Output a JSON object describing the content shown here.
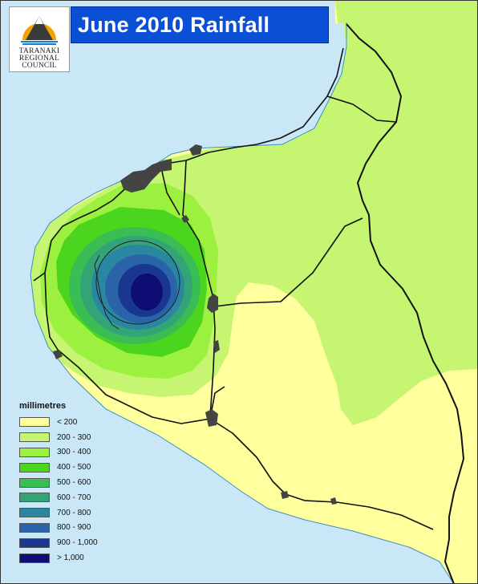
{
  "title": "June 2010 Rainfall",
  "logo": {
    "lines": [
      "TARANAKI",
      "REGIONAL",
      "COUNCIL"
    ],
    "icon": "taranaki-mountain-logo-icon"
  },
  "legend": {
    "title": "millimetres",
    "classes": [
      {
        "label": "< 200",
        "color": "#ffff9e"
      },
      {
        "label": "200 - 300",
        "color": "#c6f571"
      },
      {
        "label": "300 - 400",
        "color": "#9bf040"
      },
      {
        "label": "400 - 500",
        "color": "#4cd51f"
      },
      {
        "label": "500 - 600",
        "color": "#3abd54"
      },
      {
        "label": "600 - 700",
        "color": "#33a476"
      },
      {
        "label": "700 - 800",
        "color": "#2a87a2"
      },
      {
        "label": "800 - 900",
        "color": "#2a63a8"
      },
      {
        "label": "900 - 1,000",
        "color": "#1a3790"
      },
      {
        "label": "> 1,000",
        "color": "#0d0d73"
      }
    ]
  },
  "colors": {
    "sea": "#c9e7f7",
    "outside_region": "#808080",
    "roads": "#111111",
    "towns": "#444444"
  }
}
